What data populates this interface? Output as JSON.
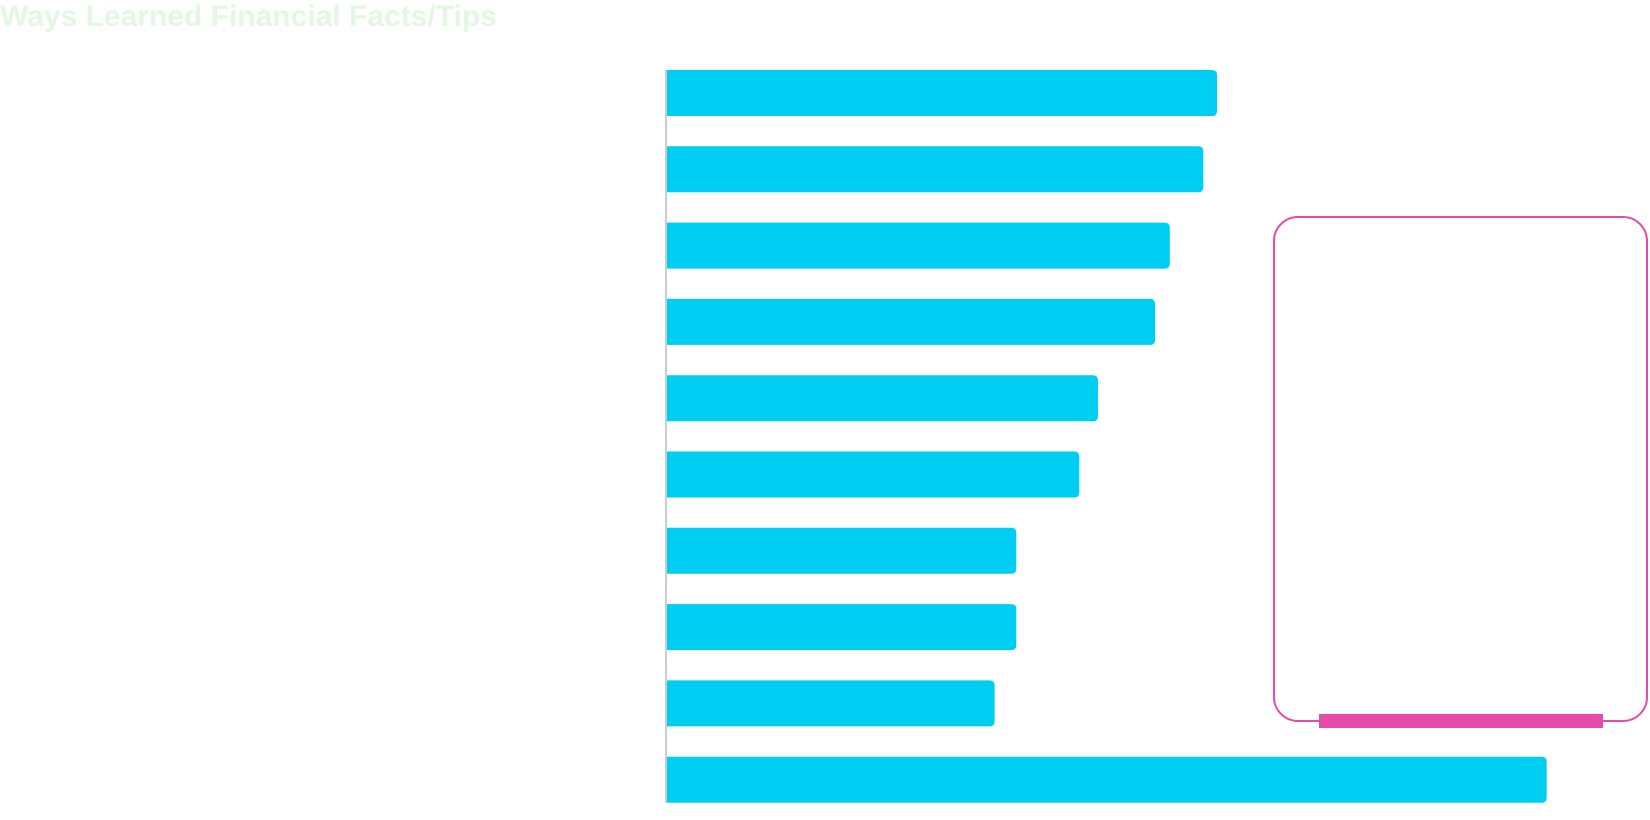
{
  "chart_data": {
    "type": "bar",
    "orientation": "horizontal",
    "title": "Ways Learned Financial Facts/Tips",
    "xlabel": "",
    "ylabel": "",
    "categories": [
      "",
      "",
      "",
      "",
      "",
      "",
      "",
      "",
      "",
      ""
    ],
    "values": [
      560,
      546,
      512,
      497,
      439,
      420,
      356,
      356,
      334,
      895
    ],
    "xlim": [
      0,
      1000
    ],
    "grid": false,
    "legend": "none"
  },
  "colors": {
    "title": "#e3f7e3",
    "bar": "#00cdf2",
    "axis": "#cccccc",
    "highlight": "#e84aaa"
  },
  "highlight_box": {
    "name": "selection-highlight"
  }
}
